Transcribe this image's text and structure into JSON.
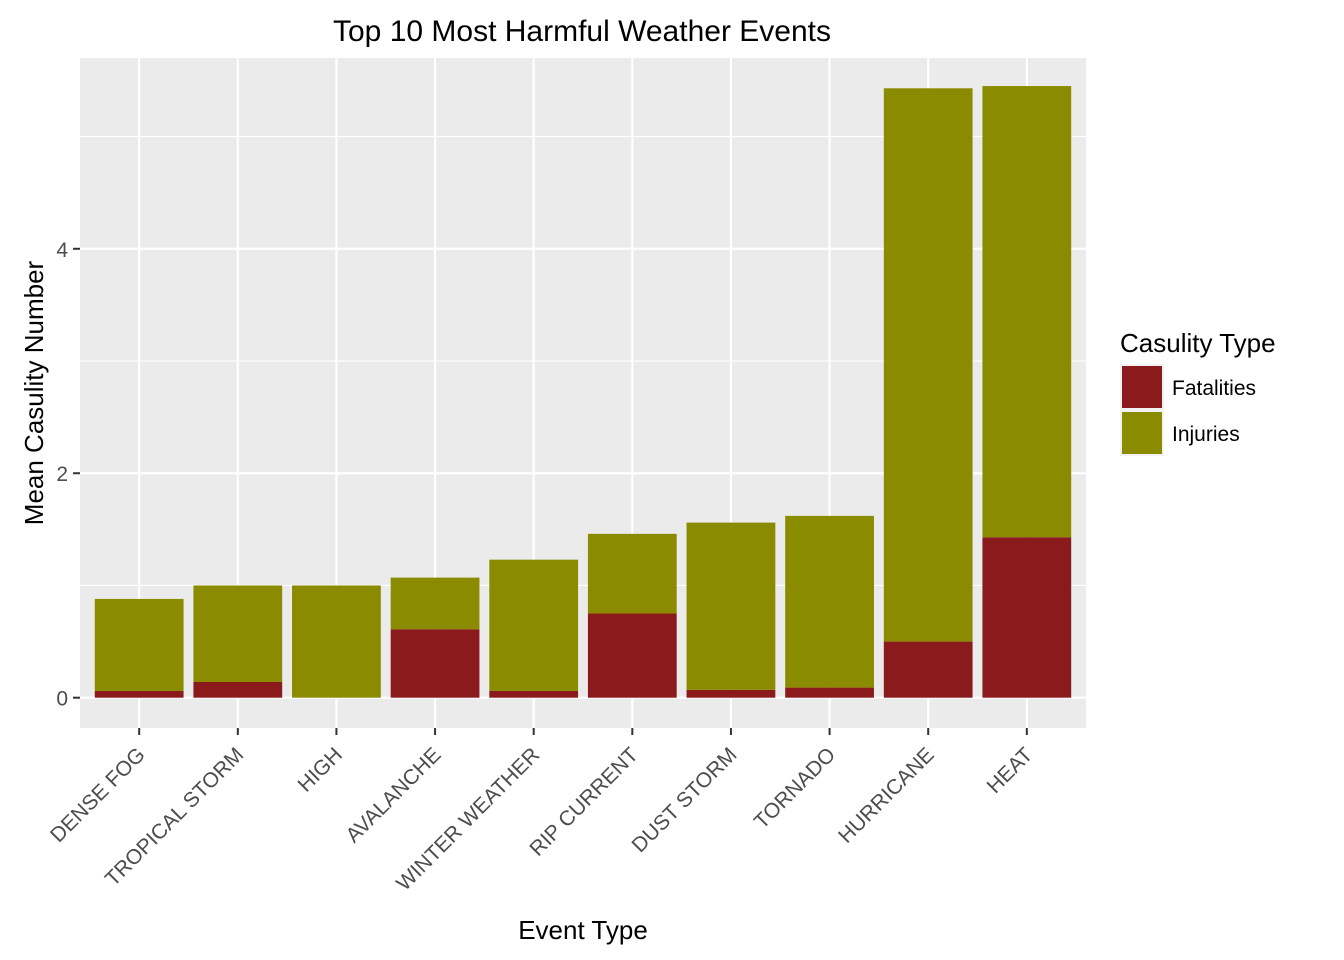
{
  "chart_data": {
    "type": "bar",
    "stacked": true,
    "title": "Top 10 Most Harmful Weather Events",
    "xlabel": "Event Type",
    "ylabel": "Mean Casulity Number",
    "categories": [
      "DENSE FOG",
      "TROPICAL STORM",
      "HIGH",
      "AVALANCHE",
      "WINTER WEATHER",
      "RIP CURRENT",
      "DUST STORM",
      "TORNADO",
      "HURRICANE",
      "HEAT"
    ],
    "series": [
      {
        "name": "Fatalities",
        "color": "#8B1A1D",
        "values": [
          0.06,
          0.14,
          0.0,
          0.61,
          0.06,
          0.75,
          0.07,
          0.09,
          0.5,
          1.43
        ]
      },
      {
        "name": "Injuries",
        "color": "#8B8B00",
        "values": [
          0.82,
          0.86,
          1.0,
          0.46,
          1.17,
          0.71,
          1.49,
          1.53,
          4.93,
          4.02
        ]
      }
    ],
    "yticks": [
      0,
      2,
      4
    ],
    "ylim": [
      -0.27,
      5.7
    ],
    "grid": true,
    "legend": {
      "title": "Casulity Type",
      "position": "right",
      "items": [
        "Fatalities",
        "Injuries"
      ]
    },
    "colors": {
      "panel_bg": "#EBEBEB",
      "grid_major": "#FFFFFF"
    }
  }
}
